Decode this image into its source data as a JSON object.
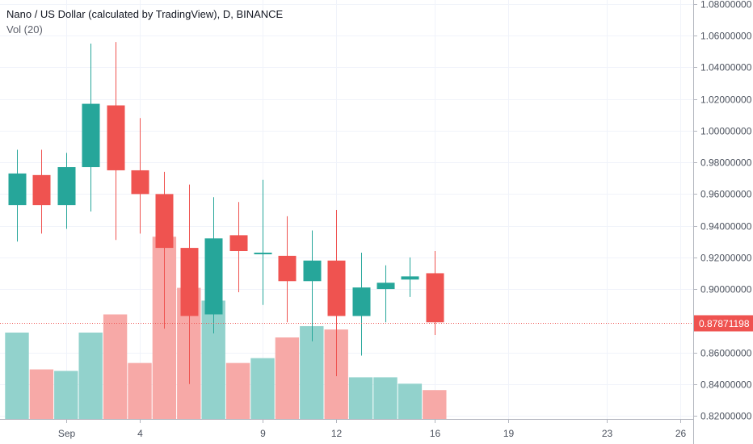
{
  "header": {
    "title": "Nano / US Dollar (calculated by TradingView), D, BINANCE",
    "indicator": "Vol (20)"
  },
  "colors": {
    "up": "#26a69a",
    "down": "#ef5350",
    "vol_up": "#92d2cc",
    "vol_down": "#f7a9a7",
    "grid": "#f0f3fa",
    "axis_text": "#4c525e",
    "price_line": "#ef5350",
    "price_tag_bg": "#ef5350",
    "price_tag_text": "#ffffff"
  },
  "chart_data": {
    "type": "candlestick",
    "x_label": "",
    "y_label": "",
    "ylim": [
      0.82,
      1.08
    ],
    "grid": true,
    "last_price": "0.87871198",
    "last_price_value": 0.87871198,
    "y_ticks": [
      {
        "value": 1.08,
        "label": "1.08000000"
      },
      {
        "value": 1.06,
        "label": "1.06000000"
      },
      {
        "value": 1.04,
        "label": "1.04000000"
      },
      {
        "value": 1.02,
        "label": "1.02000000"
      },
      {
        "value": 1.0,
        "label": "1.00000000"
      },
      {
        "value": 0.98,
        "label": "0.98000000"
      },
      {
        "value": 0.96,
        "label": "0.96000000"
      },
      {
        "value": 0.94,
        "label": "0.94000000"
      },
      {
        "value": 0.92,
        "label": "0.92000000"
      },
      {
        "value": 0.9,
        "label": "0.90000000"
      },
      {
        "value": 0.86,
        "label": "0.86000000"
      },
      {
        "value": 0.84,
        "label": "0.84000000"
      },
      {
        "value": 0.82,
        "label": "0.82000000"
      }
    ],
    "x_ticks": [
      {
        "index": 2,
        "label": "Sep"
      },
      {
        "index": 5,
        "label": "4"
      },
      {
        "index": 10,
        "label": "9"
      },
      {
        "index": 13,
        "label": "12"
      },
      {
        "index": 17,
        "label": "16"
      },
      {
        "index": 20,
        "label": "19"
      },
      {
        "index": 24,
        "label": "23"
      },
      {
        "index": 27,
        "label": "26"
      }
    ],
    "volume_scale_max": 0.6,
    "candles": [
      {
        "index": 0,
        "open": 0.953,
        "high": 0.988,
        "low": 0.93,
        "close": 0.973,
        "volume": 0.338
      },
      {
        "index": 1,
        "open": 0.972,
        "high": 0.988,
        "low": 0.935,
        "close": 0.953,
        "volume": 0.194
      },
      {
        "index": 2,
        "open": 0.953,
        "high": 0.986,
        "low": 0.938,
        "close": 0.977,
        "volume": 0.188
      },
      {
        "index": 3,
        "open": 0.977,
        "high": 1.055,
        "low": 0.949,
        "close": 1.017,
        "volume": 0.338
      },
      {
        "index": 4,
        "open": 1.016,
        "high": 1.056,
        "low": 0.931,
        "close": 0.975,
        "volume": 0.409
      },
      {
        "index": 5,
        "open": 0.975,
        "high": 1.008,
        "low": 0.935,
        "close": 0.96,
        "volume": 0.219
      },
      {
        "index": 6,
        "open": 0.96,
        "high": 0.974,
        "low": 0.875,
        "close": 0.926,
        "volume": 0.713
      },
      {
        "index": 7,
        "open": 0.926,
        "high": 0.966,
        "low": 0.84,
        "close": 0.883,
        "volume": 0.513
      },
      {
        "index": 8,
        "open": 0.884,
        "high": 0.958,
        "low": 0.872,
        "close": 0.932,
        "volume": 0.463
      },
      {
        "index": 9,
        "open": 0.934,
        "high": 0.955,
        "low": 0.898,
        "close": 0.924,
        "volume": 0.219
      },
      {
        "index": 10,
        "open": 0.923,
        "high": 0.969,
        "low": 0.89,
        "close": 0.923,
        "volume": 0.238
      },
      {
        "index": 11,
        "open": 0.921,
        "high": 0.946,
        "low": 0.879,
        "close": 0.905,
        "volume": 0.319
      },
      {
        "index": 12,
        "open": 0.905,
        "high": 0.937,
        "low": 0.867,
        "close": 0.918,
        "volume": 0.363
      },
      {
        "index": 13,
        "open": 0.918,
        "high": 0.95,
        "low": 0.845,
        "close": 0.883,
        "volume": 0.35
      },
      {
        "index": 14,
        "open": 0.883,
        "high": 0.923,
        "low": 0.858,
        "close": 0.901,
        "volume": 0.163
      },
      {
        "index": 15,
        "open": 0.9,
        "high": 0.915,
        "low": 0.879,
        "close": 0.904,
        "volume": 0.163
      },
      {
        "index": 16,
        "open": 0.906,
        "high": 0.92,
        "low": 0.895,
        "close": 0.908,
        "volume": 0.138
      },
      {
        "index": 17,
        "open": 0.91,
        "high": 0.924,
        "low": 0.871,
        "close": 0.879,
        "volume": 0.113
      }
    ]
  }
}
